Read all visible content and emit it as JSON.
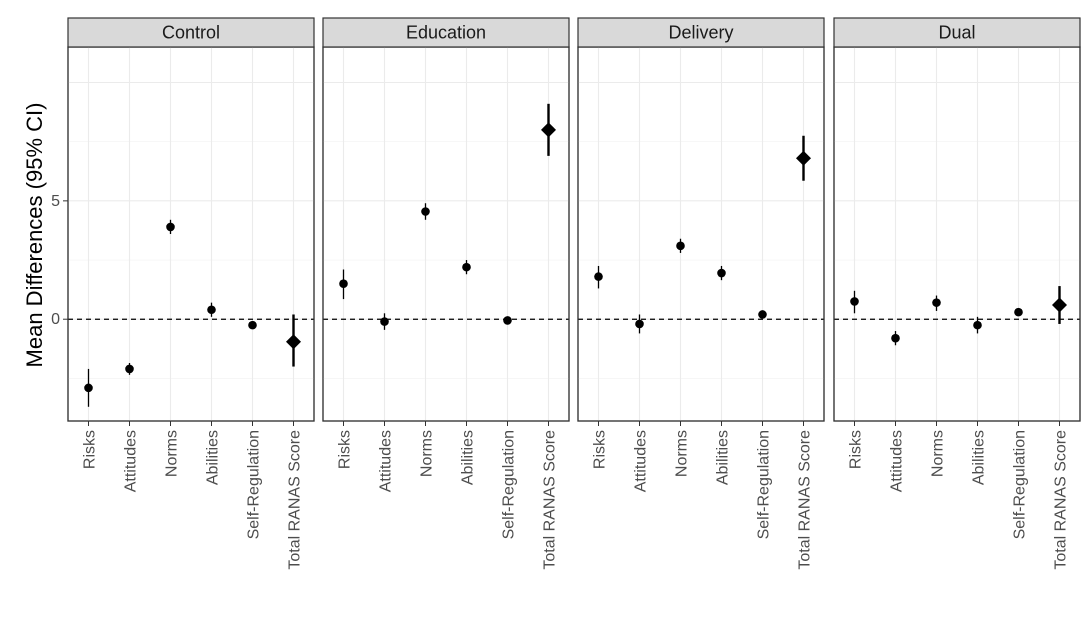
{
  "chart_data": {
    "type": "scatter",
    "ylabel": "Mean Differences (95% CI)",
    "xlabel": "",
    "ylim": [
      -4.3,
      11.5
    ],
    "yticks": [
      0,
      5
    ],
    "reference_line": 0,
    "grid": true,
    "categories": [
      "Risks",
      "Attitudes",
      "Norms",
      "Abilities",
      "Self-Regulation",
      "Total RANAS Score"
    ],
    "panels": [
      {
        "name": "Control",
        "values": [
          -2.9,
          -2.1,
          3.9,
          0.4,
          -0.25,
          -0.95
        ],
        "ci_low": [
          -3.7,
          -2.35,
          3.6,
          0.1,
          -0.4,
          -2.0
        ],
        "ci_high": [
          -2.1,
          -1.85,
          4.2,
          0.7,
          -0.1,
          0.2
        ]
      },
      {
        "name": "Education",
        "values": [
          1.5,
          -0.1,
          4.55,
          2.2,
          -0.05,
          8.0
        ],
        "ci_low": [
          0.85,
          -0.45,
          4.2,
          1.9,
          -0.15,
          6.9
        ],
        "ci_high": [
          2.1,
          0.25,
          4.9,
          2.5,
          0.05,
          9.1
        ]
      },
      {
        "name": "Delivery",
        "values": [
          1.8,
          -0.2,
          3.1,
          1.95,
          0.2,
          6.8
        ],
        "ci_low": [
          1.3,
          -0.6,
          2.8,
          1.65,
          0.1,
          5.85
        ],
        "ci_high": [
          2.25,
          0.2,
          3.4,
          2.25,
          0.3,
          7.75
        ]
      },
      {
        "name": "Dual",
        "values": [
          0.75,
          -0.8,
          0.7,
          -0.25,
          0.3,
          0.6
        ],
        "ci_low": [
          0.25,
          -1.1,
          0.35,
          -0.6,
          0.2,
          -0.2
        ],
        "ci_high": [
          1.2,
          -0.5,
          1.0,
          0.1,
          0.4,
          1.4
        ]
      }
    ],
    "colors": {
      "point": "#000000",
      "strip": "#d9d9d9",
      "grid": "#ebebeb"
    }
  }
}
